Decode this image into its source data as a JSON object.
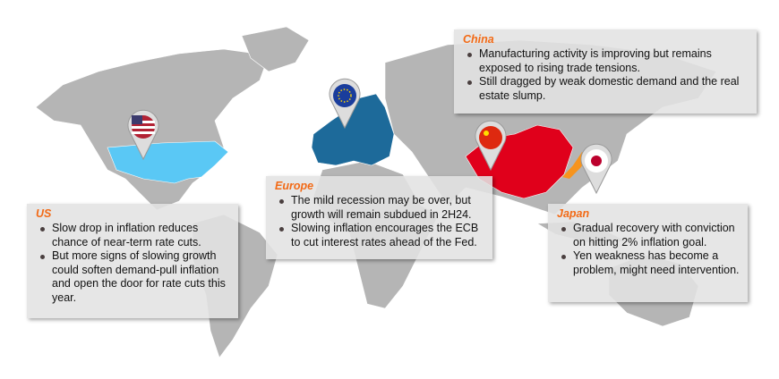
{
  "colors": {
    "land": "#b5b5b5",
    "us": "#5ac8f5",
    "europe": "#1d6a9a",
    "china": "#e0001b",
    "japan": "#f7941d",
    "heading": "#f26a16"
  },
  "regions": {
    "china": {
      "title": "China",
      "bullets": [
        "Manufacturing activity is improving but remains exposed to rising trade tensions.",
        "Still dragged by weak domestic demand and the real estate slump."
      ],
      "flag_icon": "china-flag-icon"
    },
    "europe": {
      "title": "Europe",
      "bullets": [
        "The mild recession may be over, but growth will remain subdued in 2H24.",
        "Slowing inflation encourages the ECB to cut interest rates ahead of the Fed."
      ],
      "flag_icon": "eu-flag-icon"
    },
    "us": {
      "title": "US",
      "bullets": [
        "Slow drop in inflation reduces chance of near-term rate cuts.",
        "But more signs of slowing growth could soften demand-pull inflation and open the door for rate cuts this year."
      ],
      "flag_icon": "us-flag-icon"
    },
    "japan": {
      "title": "Japan",
      "bullets": [
        "Gradual recovery with conviction on hitting 2% inflation goal.",
        "Yen weakness has become a problem, might need intervention."
      ],
      "flag_icon": "japan-flag-icon"
    }
  }
}
